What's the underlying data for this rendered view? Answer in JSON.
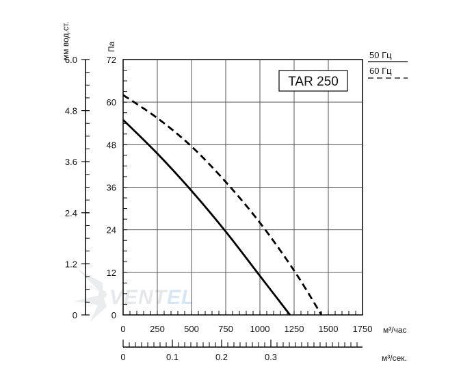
{
  "chart_data": {
    "type": "line",
    "title": "TAR 250",
    "x_axis": {
      "label": "м³/час",
      "ticks": [
        0,
        250,
        500,
        750,
        1000,
        1250,
        1500,
        1750
      ],
      "range": [
        0,
        1750
      ]
    },
    "x_axis_secondary": {
      "label": "м³/сек.",
      "ticks": [
        "0",
        "0.1",
        "0.2",
        "0.3"
      ],
      "tick_values": [
        0,
        0.1,
        0.2,
        0.3
      ]
    },
    "y_axis": {
      "label": "Па",
      "ticks": [
        0,
        12,
        24,
        36,
        48,
        60,
        72
      ],
      "range": [
        0,
        72
      ]
    },
    "y_axis_secondary": {
      "label": "мм вод.ст.",
      "ticks": [
        "0",
        "1.2",
        "2.4",
        "3.6",
        "4.8",
        "6.0"
      ],
      "tick_values": [
        0,
        1.2,
        2.4,
        3.6,
        4.8,
        6.0
      ]
    },
    "grid": true,
    "legend_placement": "top-right",
    "series": [
      {
        "name": "50 Гц",
        "style": "solid",
        "x": [
          0,
          250,
          500,
          750,
          1000,
          1220
        ],
        "y": [
          55,
          45.5,
          35,
          23.5,
          11,
          0
        ]
      },
      {
        "name": "60 Гц",
        "style": "dashed",
        "x": [
          0,
          250,
          500,
          750,
          1000,
          1250,
          1450
        ],
        "y": [
          62,
          55.5,
          47.5,
          37.5,
          26,
          12.5,
          0
        ]
      }
    ]
  }
}
